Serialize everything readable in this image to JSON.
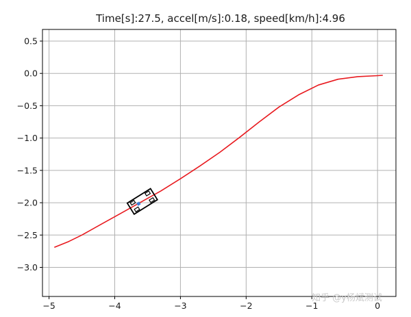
{
  "chart_data": {
    "type": "line",
    "title": "Time[s]:27.5, accel[m/s]:0.18, speed[km/h]:4.96",
    "xlabel": "",
    "ylabel": "",
    "xlim": [
      -5.1,
      0.28
    ],
    "ylim": [
      -3.45,
      0.68
    ],
    "xticks": [
      -5,
      -4,
      -3,
      -2,
      -1,
      0
    ],
    "xtick_labels": [
      "−5",
      "−4",
      "−3",
      "−2",
      "−1",
      "0"
    ],
    "yticks": [
      0.5,
      0.0,
      -0.5,
      -1.0,
      -1.5,
      -2.0,
      -2.5,
      -3.0
    ],
    "ytick_labels": [
      "0.5",
      "0.0",
      "−0.5",
      "−1.0",
      "−1.5",
      "−2.0",
      "−2.5",
      "−3.0"
    ],
    "grid": true,
    "series": [
      {
        "color": "#e8191e",
        "x": [
          -4.92,
          -4.7,
          -4.5,
          -4.2,
          -3.9,
          -3.6,
          -3.3,
          -3.0,
          -2.7,
          -2.4,
          -2.1,
          -1.8,
          -1.5,
          -1.2,
          -0.9,
          -0.6,
          -0.3,
          0.0,
          0.08
        ],
        "y": [
          -2.69,
          -2.6,
          -2.5,
          -2.33,
          -2.16,
          -1.99,
          -1.82,
          -1.63,
          -1.43,
          -1.22,
          -0.99,
          -0.75,
          -0.52,
          -0.33,
          -0.18,
          -0.09,
          -0.05,
          -0.035,
          -0.03
        ]
      }
    ],
    "vehicle": {
      "center": [
        -3.58,
        -1.98
      ],
      "heading_deg": 32,
      "length": 0.42,
      "width": 0.2,
      "body_color": "#000000",
      "marker_color": "#3b7dd8"
    }
  },
  "watermark": "知乎 @y杨斌测试"
}
